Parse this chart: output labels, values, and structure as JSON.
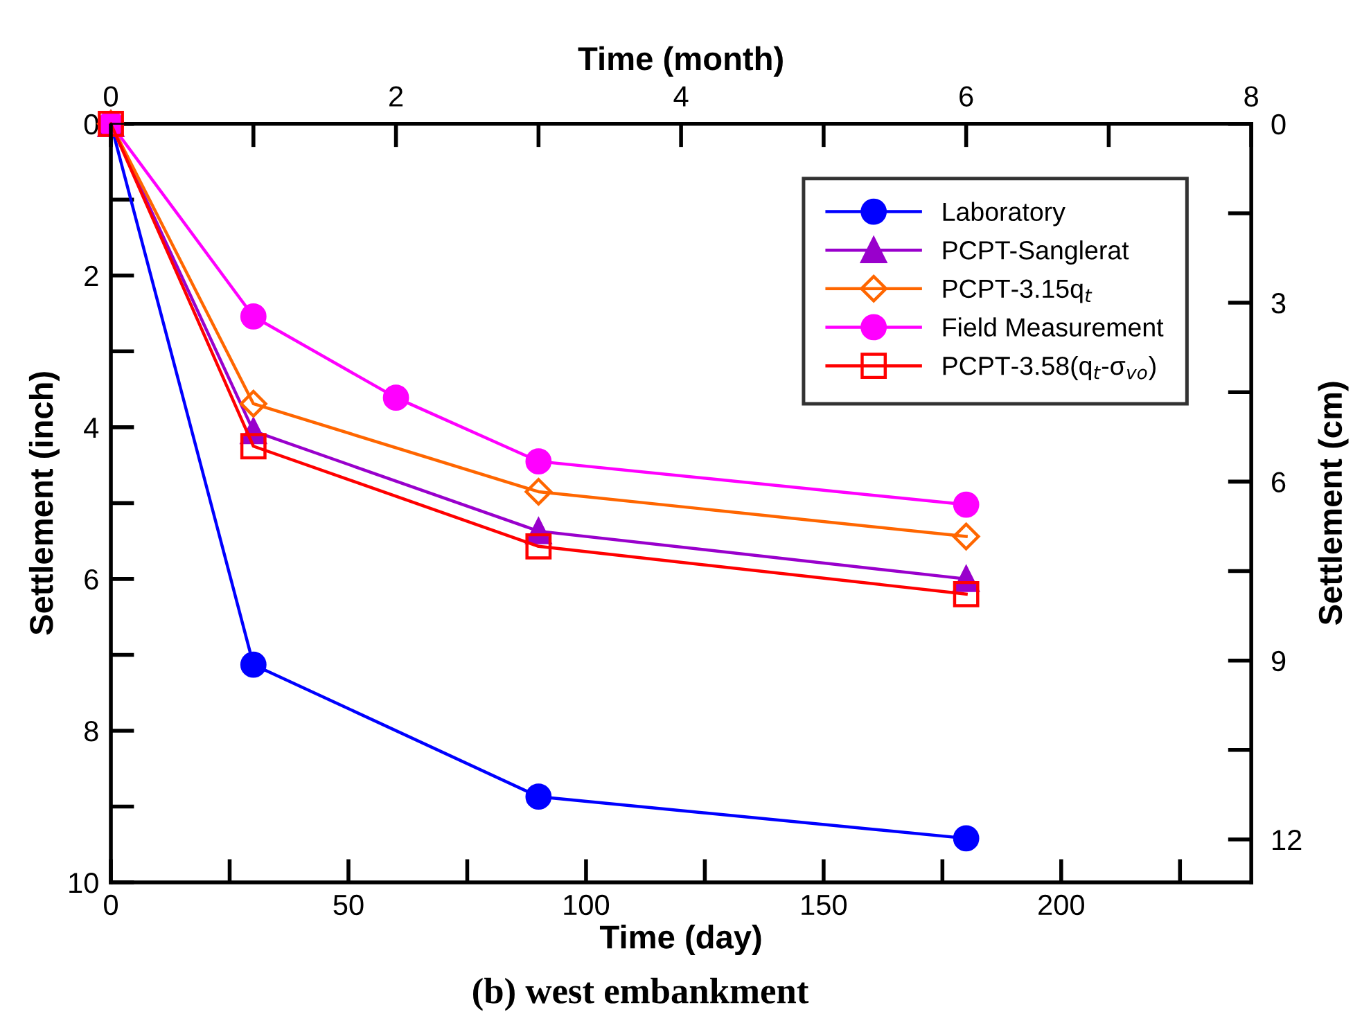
{
  "chart_data": {
    "type": "line",
    "title": "(b) west embankment",
    "xlabel": "Time (day)",
    "ylabel": "Settlement (inch)",
    "y2label": "Settlement (cm)",
    "x2label": "Time (month)",
    "xlim": [
      0,
      240
    ],
    "xticks": [
      0,
      50,
      100,
      150,
      200
    ],
    "x2lim": [
      0,
      8
    ],
    "x2ticks": [
      0,
      2,
      4,
      6,
      8
    ],
    "ylim": [
      10,
      0
    ],
    "yticks": [
      0,
      2,
      4,
      6,
      8,
      10
    ],
    "y2lim": [
      12.72,
      0
    ],
    "y2ticks": [
      0,
      3,
      6,
      9,
      12
    ],
    "grid": false,
    "legend": "top right",
    "line_style": "solid",
    "series": [
      {
        "name": "Laboratory",
        "color": "#0000ff",
        "marker": "circle",
        "x": [
          0,
          30,
          90,
          180
        ],
        "values": [
          0,
          7.13,
          8.87,
          9.42
        ]
      },
      {
        "name": "PCPT-Sanglerat",
        "color": "#9900cc",
        "marker": "triangle",
        "x": [
          0,
          30,
          90,
          180
        ],
        "values": [
          0,
          4.05,
          5.37,
          6.0
        ]
      },
      {
        "name": "PCPT-3.15q$_{t}$",
        "color": "#ff6600",
        "marker": "diamond",
        "x": [
          0,
          30,
          90,
          180
        ],
        "values": [
          0,
          3.69,
          4.85,
          5.44
        ]
      },
      {
        "name": "Field Measurement",
        "color": "#ff00ff",
        "marker": "circle",
        "x": [
          0,
          30,
          60,
          90,
          180
        ],
        "values": [
          0,
          2.54,
          3.61,
          4.45,
          5.02
        ]
      },
      {
        "name": "PCPT-3.58(q$_{t}$-σ$_{vo}$)",
        "color": "#ff0000",
        "marker": "square",
        "x": [
          0,
          30,
          90,
          180
        ],
        "values": [
          0,
          4.25,
          5.57,
          6.2
        ]
      }
    ]
  }
}
